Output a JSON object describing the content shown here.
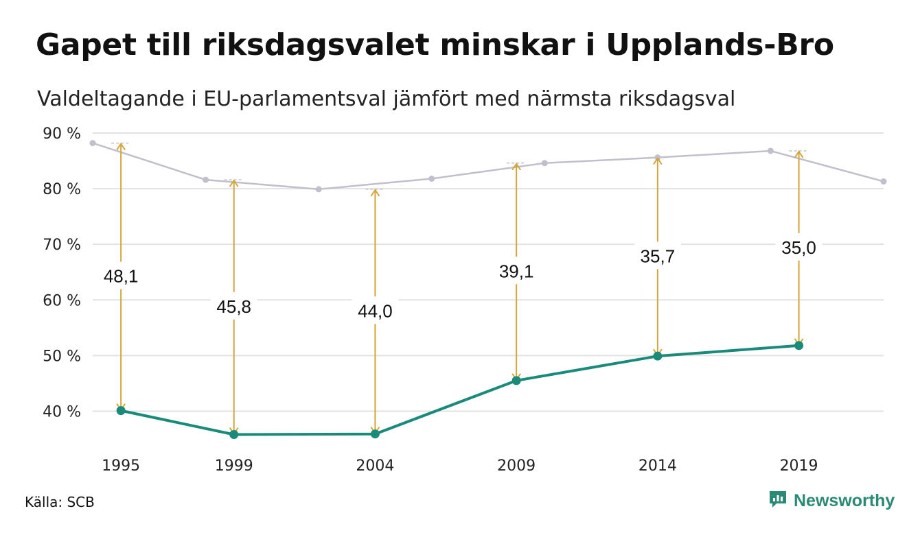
{
  "title": "Gapet till riksdagsvalet minskar i Upplands-Bro",
  "subtitle": "Valdeltagande i EU-parlamentsval jämfört med närmsta riksdagsval",
  "source": "Källa: SCB",
  "brand": {
    "name": "Newsworthy",
    "icon": "newsworthy-logo-icon"
  },
  "colors": {
    "eu": "#1a8a7a",
    "riksdag": "#c2bfcc",
    "gap": "#d4a53b",
    "grid": "#e2e2e2"
  },
  "chart_data": {
    "type": "line",
    "title": "Gapet till riksdagsvalet minskar i Upplands-Bro",
    "subtitle": "Valdeltagande i EU-parlamentsval jämfört med närmsta riksdagsval",
    "x_range": [
      1994.0,
      2022.0
    ],
    "ylim": [
      35,
      90
    ],
    "y_ticks": [
      40,
      50,
      60,
      70,
      80,
      90
    ],
    "y_tick_labels": [
      "40 %",
      "50 %",
      "60 %",
      "70 %",
      "80 %",
      "90 %"
    ],
    "x_ticks": [
      1995,
      1999,
      2004,
      2009,
      2014,
      2019
    ],
    "x_tick_labels": [
      "1995",
      "1999",
      "2004",
      "2009",
      "2014",
      "2019"
    ],
    "grid": true,
    "series": [
      {
        "key": "riksdag",
        "x": [
          1994,
          1998,
          2002,
          2006,
          2010,
          2014,
          2018,
          2022
        ],
        "values": [
          88.2,
          81.6,
          79.9,
          81.8,
          84.6,
          85.6,
          86.8,
          81.3
        ]
      },
      {
        "key": "eu",
        "x": [
          1995,
          1999,
          2004,
          2009,
          2014,
          2019
        ],
        "values": [
          40.1,
          35.8,
          35.9,
          45.5,
          49.9,
          51.8
        ]
      }
    ],
    "gaps": [
      {
        "x": 1995,
        "from": 40.1,
        "to": 88.2,
        "label": "48,1"
      },
      {
        "x": 1999,
        "from": 35.8,
        "to": 81.6,
        "label": "45,8"
      },
      {
        "x": 2004,
        "from": 35.9,
        "to": 79.9,
        "label": "44,0"
      },
      {
        "x": 2009,
        "from": 45.5,
        "to": 84.6,
        "label": "39,1"
      },
      {
        "x": 2014,
        "from": 49.9,
        "to": 85.6,
        "label": "35,7"
      },
      {
        "x": 2019,
        "from": 51.8,
        "to": 86.8,
        "label": "35,0"
      }
    ]
  }
}
